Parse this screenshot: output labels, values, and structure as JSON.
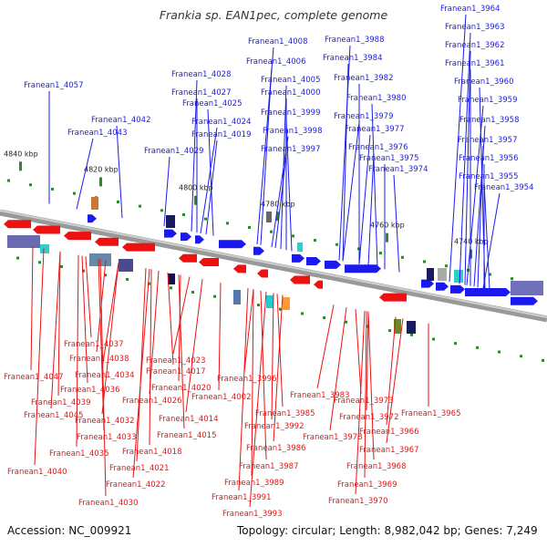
{
  "title": "Frankia sp. EAN1pec, complete genome",
  "accession": "Accession: NC_009921",
  "info": "Topology: circular; Length: 8,982,042 bp; Genes: 7,249",
  "colors": {
    "forward": "#1a1aee",
    "reverse": "#ee1111",
    "backbone": "#888888",
    "tick": "#2a8a2a"
  },
  "scale_ticks": [
    "4840 kbp",
    "4820 kbp",
    "4800 kbp",
    "4780 kbp",
    "4760 kbp",
    "4740 kbp"
  ],
  "forward_genes": [
    "Franean1_3964",
    "Franean1_3963",
    "Franean1_3962",
    "Franean1_3961",
    "Franean1_3960",
    "Franean1_3959",
    "Franean1_3958",
    "Franean1_3957",
    "Franean1_3956",
    "Franean1_3955",
    "Franean1_3954",
    "Franean1_3988",
    "Franean1_3984",
    "Franean1_3982",
    "Franean1_3980",
    "Franean1_3979",
    "Franean1_3977",
    "Franean1_3976",
    "Franean1_3975",
    "Franean1_3974",
    "Franean1_4008",
    "Franean1_4006",
    "Franean1_4005",
    "Franean1_4000",
    "Franean1_3999",
    "Franean1_3998",
    "Franean1_3997",
    "Franean1_4028",
    "Franean1_4027",
    "Franean1_4025",
    "Franean1_4024",
    "Franean1_4019",
    "Franean1_4029",
    "Franean1_4057",
    "Franean1_4042",
    "Franean1_4043"
  ],
  "reverse_genes": [
    "Franean1_4037",
    "Franean1_4047",
    "Franean1_4038",
    "Franean1_4034",
    "Franean1_4036",
    "Franean1_4039",
    "Franean1_4045",
    "Franean1_4032",
    "Franean1_4033",
    "Franean1_4035",
    "Franean1_4040",
    "Franean1_4023",
    "Franean1_4017",
    "Franean1_4020",
    "Franean1_4026",
    "Franean1_4014",
    "Franean1_4015",
    "Franean1_4018",
    "Franean1_4021",
    "Franean1_4022",
    "Franean1_4030",
    "Franean1_4002",
    "Franean1_3996",
    "Franean1_3983",
    "Franean1_3985",
    "Franean1_3992",
    "Franean1_3986",
    "Franean1_3978",
    "Franean1_3987",
    "Franean1_3989",
    "Franean1_3991",
    "Franean1_3993",
    "Franean1_3973",
    "Franean1_3972",
    "Franean1_3966",
    "Franean1_3967",
    "Franean1_3968",
    "Franean1_3969",
    "Franean1_3970",
    "Franean1_3965"
  ]
}
